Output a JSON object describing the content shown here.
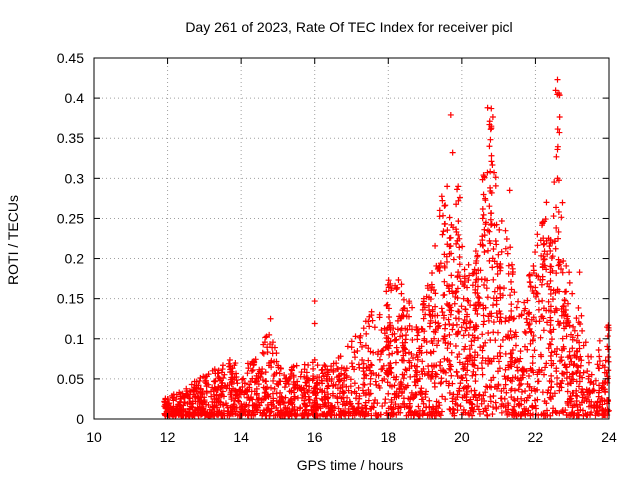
{
  "chart_data": {
    "type": "scatter",
    "title": "Day 261 of 2023, Rate Of TEC Index for receiver picl",
    "xlabel": "GPS time / hours",
    "ylabel": "ROTI / TECUs",
    "xlim": [
      10,
      24
    ],
    "ylim": [
      0,
      0.45
    ],
    "xticks": [
      "10",
      "12",
      "14",
      "16",
      "18",
      "20",
      "22",
      "24"
    ],
    "yticks": [
      "0",
      "0.05",
      "0.1",
      "0.15",
      "0.2",
      "0.25",
      "0.3",
      "0.35",
      "0.4",
      "0.45"
    ],
    "grid": true,
    "marker": "+",
    "color": "#ff0000",
    "envelope": [
      [
        11.9,
        0.025
      ],
      [
        12.3,
        0.03
      ],
      [
        12.8,
        0.045
      ],
      [
        13.2,
        0.055
      ],
      [
        13.6,
        0.075
      ],
      [
        14.0,
        0.06
      ],
      [
        14.5,
        0.075
      ],
      [
        14.8,
        0.12
      ],
      [
        15.1,
        0.055
      ],
      [
        15.6,
        0.065
      ],
      [
        16.0,
        0.07
      ],
      [
        16.4,
        0.06
      ],
      [
        16.8,
        0.08
      ],
      [
        17.2,
        0.11
      ],
      [
        17.6,
        0.14
      ],
      [
        18.0,
        0.17
      ],
      [
        18.4,
        0.17
      ],
      [
        18.8,
        0.12
      ],
      [
        19.2,
        0.19
      ],
      [
        19.5,
        0.3
      ],
      [
        19.7,
        0.24
      ],
      [
        19.9,
        0.29
      ],
      [
        20.1,
        0.19
      ],
      [
        20.4,
        0.21
      ],
      [
        20.6,
        0.32
      ],
      [
        20.8,
        0.38
      ],
      [
        21.0,
        0.25
      ],
      [
        21.3,
        0.23
      ],
      [
        21.6,
        0.12
      ],
      [
        21.9,
        0.2
      ],
      [
        22.2,
        0.26
      ],
      [
        22.45,
        0.22
      ],
      [
        22.6,
        0.42
      ],
      [
        22.8,
        0.2
      ],
      [
        23.1,
        0.15
      ],
      [
        23.4,
        0.1
      ],
      [
        23.7,
        0.09
      ],
      [
        24.0,
        0.12
      ]
    ],
    "spikes": [
      [
        16.0,
        0.147
      ],
      [
        16.0,
        0.119
      ],
      [
        19.7,
        0.379
      ],
      [
        19.75,
        0.332
      ],
      [
        20.7,
        0.388
      ],
      [
        20.8,
        0.387
      ],
      [
        20.75,
        0.367
      ],
      [
        20.8,
        0.365
      ],
      [
        20.75,
        0.34
      ],
      [
        22.6,
        0.423
      ],
      [
        22.65,
        0.404
      ],
      [
        22.6,
        0.336
      ],
      [
        22.6,
        0.3
      ],
      [
        22.3,
        0.27
      ],
      [
        23.2,
        0.183
      ],
      [
        21.3,
        0.285
      ],
      [
        19.4,
        0.26
      ],
      [
        19.6,
        0.29
      ],
      [
        19.9,
        0.29
      ],
      [
        14.8,
        0.125
      ]
    ],
    "density_per_hour": 190
  }
}
